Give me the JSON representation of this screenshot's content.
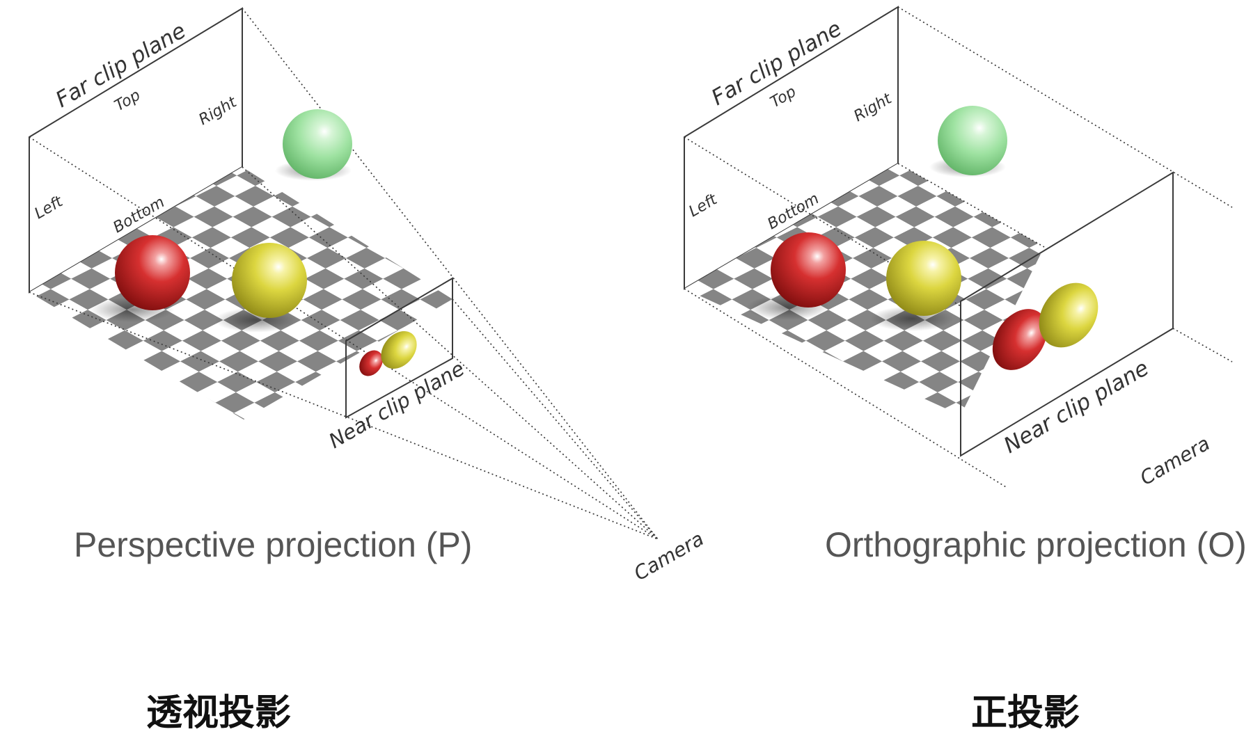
{
  "perspective": {
    "far_clip_plane": "Far clip plane",
    "top": "Top",
    "right": "Right",
    "left": "Left",
    "bottom": "Bottom",
    "near_clip_plane": "Near clip plane",
    "camera": "Camera",
    "caption": "Perspective projection (P)",
    "title_cn": "透视投影"
  },
  "orthographic": {
    "far_clip_plane": "Far clip plane",
    "top": "Top",
    "right": "Right",
    "left": "Left",
    "bottom": "Bottom",
    "near_clip_plane": "Near clip plane",
    "camera": "Camera",
    "caption": "Orthographic projection (O)",
    "title_cn": "正投影"
  },
  "colors": {
    "red_sphere": "#c42020",
    "yellow_sphere": "#d8d030",
    "green_sphere": "#8fdc92",
    "checker_dark": "#8a8a8a",
    "checker_light": "#ffffff"
  }
}
